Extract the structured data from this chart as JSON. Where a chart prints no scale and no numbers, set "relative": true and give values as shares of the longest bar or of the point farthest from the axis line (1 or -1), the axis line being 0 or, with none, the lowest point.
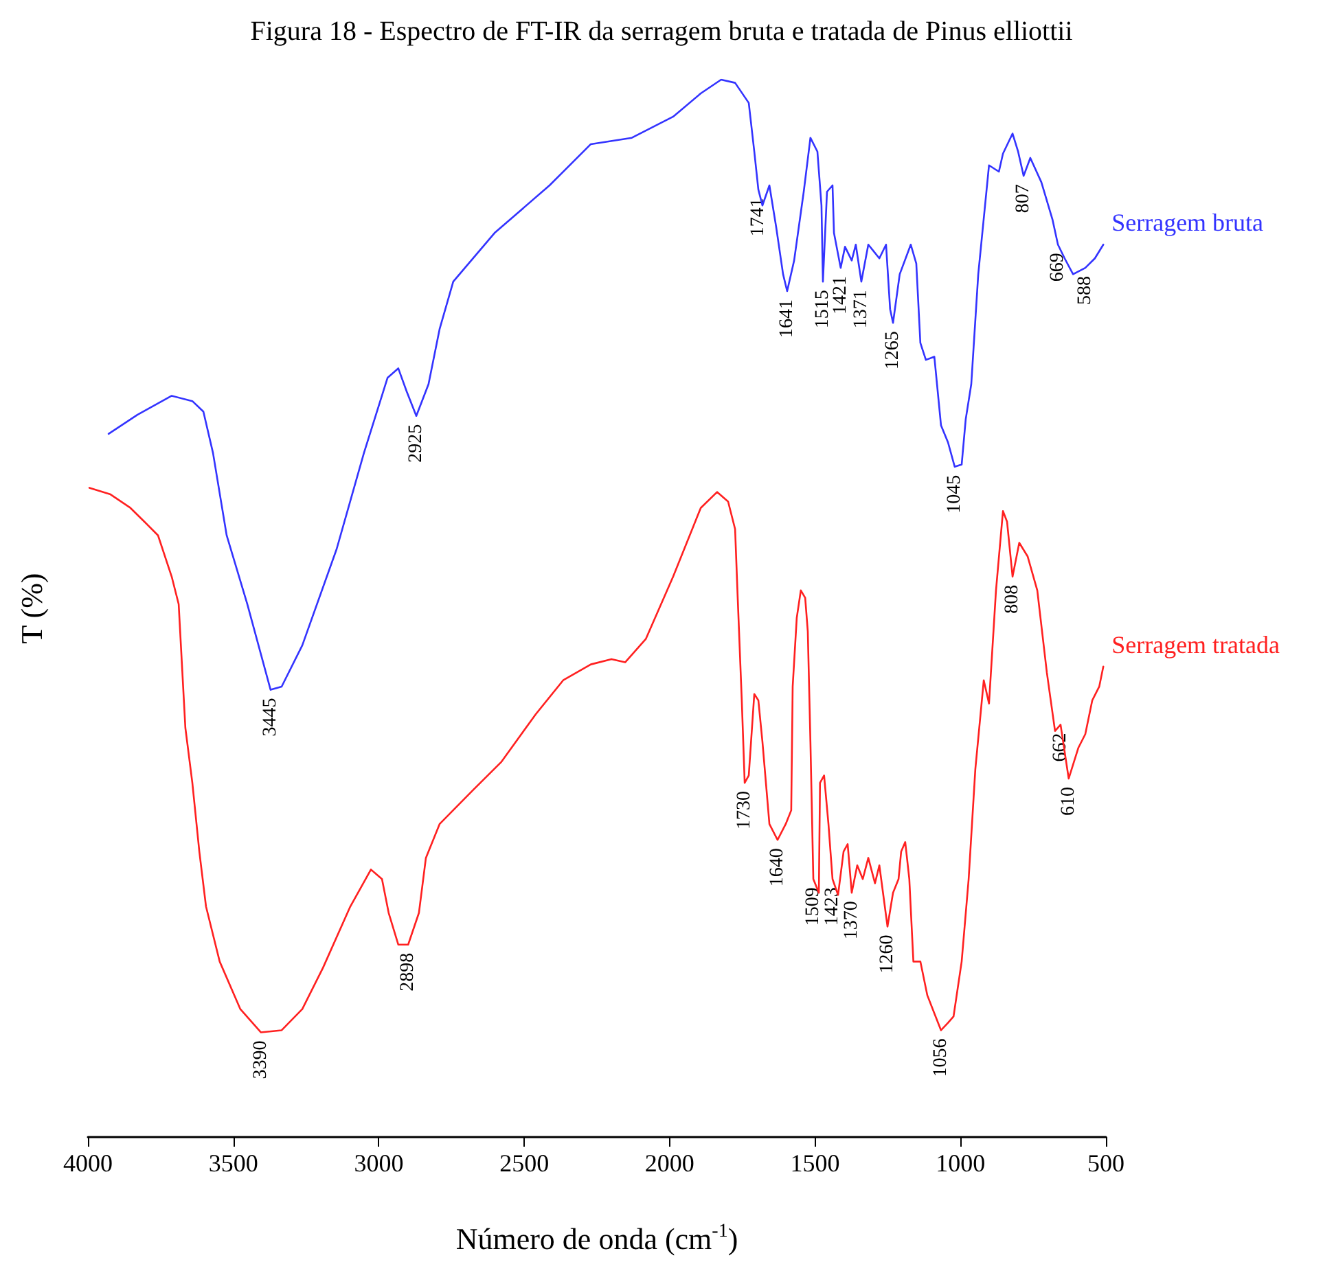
{
  "chart_data": {
    "type": "line",
    "title": "Figura 18 - Espectro de FT-IR da serragem bruta e tratada de Pinus elliottii",
    "xlabel": "Número de onda (cm$^{-1}$)",
    "ylabel": "T (%)",
    "relative": true,
    "legend": false,
    "grid": false,
    "marker": "none",
    "line_style": "solid",
    "tick_labels": "x",
    "xlim": [
      4000,
      500
    ],
    "xticks": [
      4000,
      3500,
      3000,
      2500,
      2000,
      1500,
      1000,
      500
    ],
    "series": [
      {
        "name": "Serragem bruta",
        "color": "#3333ff",
        "x": [
          3929,
          3830,
          3712,
          3641,
          3603,
          3570,
          3523,
          3452,
          3372,
          3334,
          3263,
          3145,
          3051,
          2970,
          2933,
          2904,
          2871,
          2829,
          2791,
          2744,
          2602,
          2413,
          2271,
          2130,
          1988,
          1893,
          1823,
          1775,
          1728,
          1709,
          1695,
          1681,
          1657,
          1634,
          1610,
          1596,
          1572,
          1539,
          1516,
          1492,
          1478,
          1473,
          1459,
          1440,
          1435,
          1412,
          1397,
          1374,
          1360,
          1341,
          1317,
          1279,
          1256,
          1242,
          1232,
          1209,
          1171,
          1152,
          1138,
          1119,
          1090,
          1067,
          1043,
          1020,
          996,
          982,
          963,
          939,
          902,
          868,
          854,
          821,
          802,
          783,
          760,
          722,
          684,
          665,
          642,
          613,
          571,
          538,
          509
        ],
        "values": [
          0.665,
          0.683,
          0.701,
          0.696,
          0.686,
          0.647,
          0.569,
          0.504,
          0.423,
          0.426,
          0.465,
          0.556,
          0.647,
          0.718,
          0.727,
          0.705,
          0.682,
          0.712,
          0.764,
          0.809,
          0.855,
          0.9,
          0.939,
          0.945,
          0.965,
          0.987,
          1,
          0.997,
          0.978,
          0.932,
          0.896,
          0.881,
          0.9,
          0.861,
          0.816,
          0.8,
          0.829,
          0.894,
          0.945,
          0.932,
          0.881,
          0.809,
          0.894,
          0.9,
          0.855,
          0.822,
          0.842,
          0.829,
          0.844,
          0.809,
          0.844,
          0.831,
          0.844,
          0.783,
          0.77,
          0.816,
          0.844,
          0.826,
          0.751,
          0.735,
          0.738,
          0.673,
          0.657,
          0.634,
          0.636,
          0.679,
          0.712,
          0.816,
          0.919,
          0.913,
          0.93,
          0.949,
          0.932,
          0.909,
          0.926,
          0.903,
          0.868,
          0.844,
          0.831,
          0.816,
          0.822,
          0.831,
          0.844
        ]
      },
      {
        "name": "Serragem tratada",
        "color": "#ff2020",
        "x": [
          3995,
          3924,
          3854,
          3806,
          3759,
          3712,
          3688,
          3665,
          3641,
          3617,
          3594,
          3547,
          3476,
          3405,
          3334,
          3263,
          3192,
          3098,
          3027,
          2989,
          2966,
          2933,
          2899,
          2862,
          2838,
          2791,
          2673,
          2578,
          2460,
          2366,
          2271,
          2200,
          2153,
          2082,
          1988,
          1893,
          1837,
          1799,
          1775,
          1766,
          1752,
          1742,
          1728,
          1709,
          1695,
          1681,
          1657,
          1629,
          1601,
          1582,
          1577,
          1563,
          1549,
          1534,
          1525,
          1516,
          1506,
          1487,
          1483,
          1469,
          1454,
          1440,
          1421,
          1402,
          1388,
          1374,
          1355,
          1336,
          1317,
          1294,
          1279,
          1251,
          1232,
          1213,
          1204,
          1190,
          1176,
          1162,
          1138,
          1114,
          1090,
          1067,
          1043,
          1024,
          996,
          972,
          949,
          920,
          902,
          878,
          854,
          840,
          821,
          798,
          769,
          736,
          703,
          675,
          656,
          628,
          595,
          571,
          547,
          523,
          509
        ],
        "values": [
          0.614,
          0.608,
          0.595,
          0.582,
          0.569,
          0.53,
          0.504,
          0.387,
          0.335,
          0.27,
          0.218,
          0.166,
          0.121,
          0.099,
          0.101,
          0.121,
          0.16,
          0.218,
          0.253,
          0.244,
          0.212,
          0.182,
          0.182,
          0.212,
          0.264,
          0.296,
          0.329,
          0.355,
          0.4,
          0.432,
          0.447,
          0.452,
          0.449,
          0.471,
          0.53,
          0.595,
          0.61,
          0.601,
          0.575,
          0.51,
          0.413,
          0.335,
          0.342,
          0.419,
          0.413,
          0.374,
          0.296,
          0.281,
          0.296,
          0.309,
          0.426,
          0.491,
          0.517,
          0.51,
          0.478,
          0.374,
          0.244,
          0.231,
          0.335,
          0.342,
          0.296,
          0.244,
          0.229,
          0.27,
          0.277,
          0.231,
          0.257,
          0.244,
          0.264,
          0.24,
          0.257,
          0.199,
          0.231,
          0.244,
          0.27,
          0.279,
          0.244,
          0.166,
          0.166,
          0.134,
          0.117,
          0.101,
          0.108,
          0.114,
          0.166,
          0.244,
          0.348,
          0.432,
          0.41,
          0.517,
          0.592,
          0.582,
          0.53,
          0.562,
          0.549,
          0.517,
          0.439,
          0.384,
          0.39,
          0.339,
          0.368,
          0.381,
          0.413,
          0.426,
          0.445
        ]
      }
    ],
    "annotations": [
      {
        "text": "3445",
        "x": 3372,
        "y": 0.423
      },
      {
        "text": "2925",
        "x": 2871,
        "y": 0.682
      },
      {
        "text": "1741",
        "x": 1695,
        "y": 0.896
      },
      {
        "text": "1641",
        "x": 1596,
        "y": 0.8
      },
      {
        "text": "1515",
        "x": 1473,
        "y": 0.809
      },
      {
        "text": "1421",
        "x": 1412,
        "y": 0.822
      },
      {
        "text": "1371",
        "x": 1341,
        "y": 0.809
      },
      {
        "text": "1265",
        "x": 1232,
        "y": 0.77
      },
      {
        "text": "1045",
        "x": 1020,
        "y": 0.634
      },
      {
        "text": "807",
        "x": 783,
        "y": 0.909
      },
      {
        "text": "669",
        "x": 665,
        "y": 0.844
      },
      {
        "text": "588",
        "x": 571,
        "y": 0.822
      },
      {
        "text": "3390",
        "x": 3405,
        "y": 0.099
      },
      {
        "text": "2898",
        "x": 2899,
        "y": 0.182
      },
      {
        "text": "1730",
        "x": 1742,
        "y": 0.335
      },
      {
        "text": "1640",
        "x": 1629,
        "y": 0.281
      },
      {
        "text": "1509",
        "x": 1506,
        "y": 0.244
      },
      {
        "text": "1423",
        "x": 1440,
        "y": 0.244
      },
      {
        "text": "1370",
        "x": 1374,
        "y": 0.231
      },
      {
        "text": "1260",
        "x": 1251,
        "y": 0.199
      },
      {
        "text": "1056",
        "x": 1067,
        "y": 0.101
      },
      {
        "text": "808",
        "x": 821,
        "y": 0.53
      },
      {
        "text": "662",
        "x": 656,
        "y": 0.39
      },
      {
        "text": "610",
        "x": 628,
        "y": 0.339
      }
    ]
  }
}
